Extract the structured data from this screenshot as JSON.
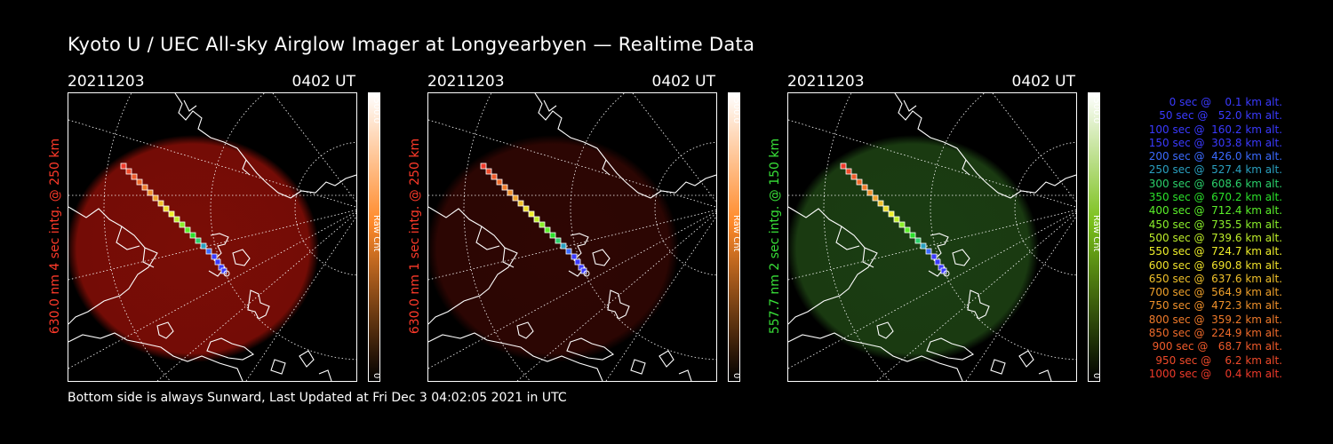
{
  "title": "Kyoto U / UEC All-sky Airglow Imager at Longyearbyen — Realtime Data",
  "footer": "Bottom side is always Sunward, Last Updated at Fri Dec  3 04:02:05 2021 in UTC",
  "panels": [
    {
      "date": "20211203",
      "time": "0402 UT",
      "side_label": "630.0 nm 4 sec intg. @ 250 km",
      "label_color": "#ff3a2a",
      "colorbar_max": "6500.0",
      "colorbar_min": "0",
      "colorbar_unit": "Raw Cnt",
      "glow_color": "#7a0d06",
      "bar_top": "#ffffff",
      "bar_mid": "#ff8a2a",
      "bar_bottom": "#000000"
    },
    {
      "date": "20211203",
      "time": "0402 UT",
      "side_label": "630.0 nm 1 sec intg. @ 250 km",
      "label_color": "#ff3a2a",
      "colorbar_max": "6500.0",
      "colorbar_min": "0",
      "colorbar_unit": "Raw Cnt",
      "glow_color": "#2e0603",
      "bar_top": "#ffffff",
      "bar_mid": "#ff8a2a",
      "bar_bottom": "#000000"
    },
    {
      "date": "20211203",
      "time": "0402 UT",
      "side_label": "557.7 nm 2 sec intg. @ 150 km",
      "label_color": "#38e038",
      "colorbar_max": "6500.0",
      "colorbar_min": "0",
      "colorbar_unit": "Raw Cnt",
      "glow_color": "#1b3d12",
      "bar_top": "#ffffff",
      "bar_mid": "#7ac01a",
      "bar_bottom": "#000000"
    }
  ],
  "legend": [
    {
      "text": "   0 sec @    0.1 km alt.",
      "color": "#3a3aff"
    },
    {
      "text": "  50 sec @   52.0 km alt.",
      "color": "#3a3aff"
    },
    {
      "text": " 100 sec @  160.2 km alt.",
      "color": "#3a3aff"
    },
    {
      "text": " 150 sec @  303.8 km alt.",
      "color": "#3a3aff"
    },
    {
      "text": " 200 sec @  426.0 km alt.",
      "color": "#3a6aff"
    },
    {
      "text": " 250 sec @  527.4 km alt.",
      "color": "#2aa0c0"
    },
    {
      "text": " 300 sec @  608.6 km alt.",
      "color": "#2ad06a"
    },
    {
      "text": " 350 sec @  670.2 km alt.",
      "color": "#2ae02a"
    },
    {
      "text": " 400 sec @  712.4 km alt.",
      "color": "#5aef2a"
    },
    {
      "text": " 450 sec @  735.5 km alt.",
      "color": "#8aef2a"
    },
    {
      "text": " 500 sec @  739.6 km alt.",
      "color": "#bfef2a"
    },
    {
      "text": " 550 sec @  724.7 km alt.",
      "color": "#efef2a"
    },
    {
      "text": " 600 sec @  690.8 km alt.",
      "color": "#efe02a"
    },
    {
      "text": " 650 sec @  637.6 km alt.",
      "color": "#efc02a"
    },
    {
      "text": " 700 sec @  564.9 km alt.",
      "color": "#efa02a"
    },
    {
      "text": " 750 sec @  472.3 km alt.",
      "color": "#ef902a"
    },
    {
      "text": " 800 sec @  359.2 km alt.",
      "color": "#ef7a2a"
    },
    {
      "text": " 850 sec @  224.9 km alt.",
      "color": "#ef6a2a"
    },
    {
      "text": " 900 sec @   68.7 km alt.",
      "color": "#ef5a2a"
    },
    {
      "text": " 950 sec @    6.2 km alt.",
      "color": "#ef4a2a"
    },
    {
      "text": "1000 sec @    0.4 km alt.",
      "color": "#ef3a2a"
    }
  ]
}
